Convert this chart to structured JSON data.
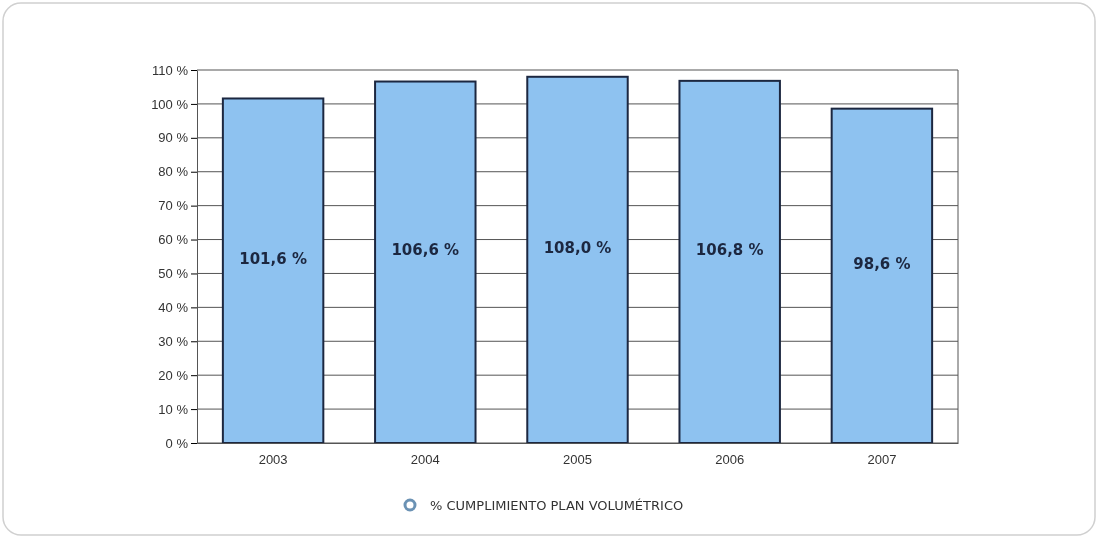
{
  "chart_data": {
    "type": "bar",
    "categories": [
      "2003",
      "2004",
      "2005",
      "2006",
      "2007"
    ],
    "series": [
      {
        "name": "% CUMPLIMIENTO PLAN VOLUMÉTRICO",
        "color": "#8ec2f0",
        "values": [
          101.6,
          106.6,
          108.0,
          106.8,
          98.6
        ],
        "value_labels": [
          "101,6 %",
          "106,6 %",
          "108,0 %",
          "106,8 %",
          "98,6 %"
        ]
      }
    ],
    "ylim": [
      0,
      110
    ],
    "yticks": [
      {
        "value": 0,
        "label": "0 %"
      },
      {
        "value": 10,
        "label": "10 %"
      },
      {
        "value": 20,
        "label": "20 %"
      },
      {
        "value": 30,
        "label": "30 %"
      },
      {
        "value": 40,
        "label": "40 %"
      },
      {
        "value": 50,
        "label": "50 %"
      },
      {
        "value": 60,
        "label": "60 %"
      },
      {
        "value": 70,
        "label": "70 %"
      },
      {
        "value": 80,
        "label": "80 %"
      },
      {
        "value": 90,
        "label": "90 %"
      },
      {
        "value": 100,
        "label": "100 %"
      },
      {
        "value": 110,
        "label": "110 %"
      }
    ],
    "grid": "y",
    "legend": "bottom"
  }
}
